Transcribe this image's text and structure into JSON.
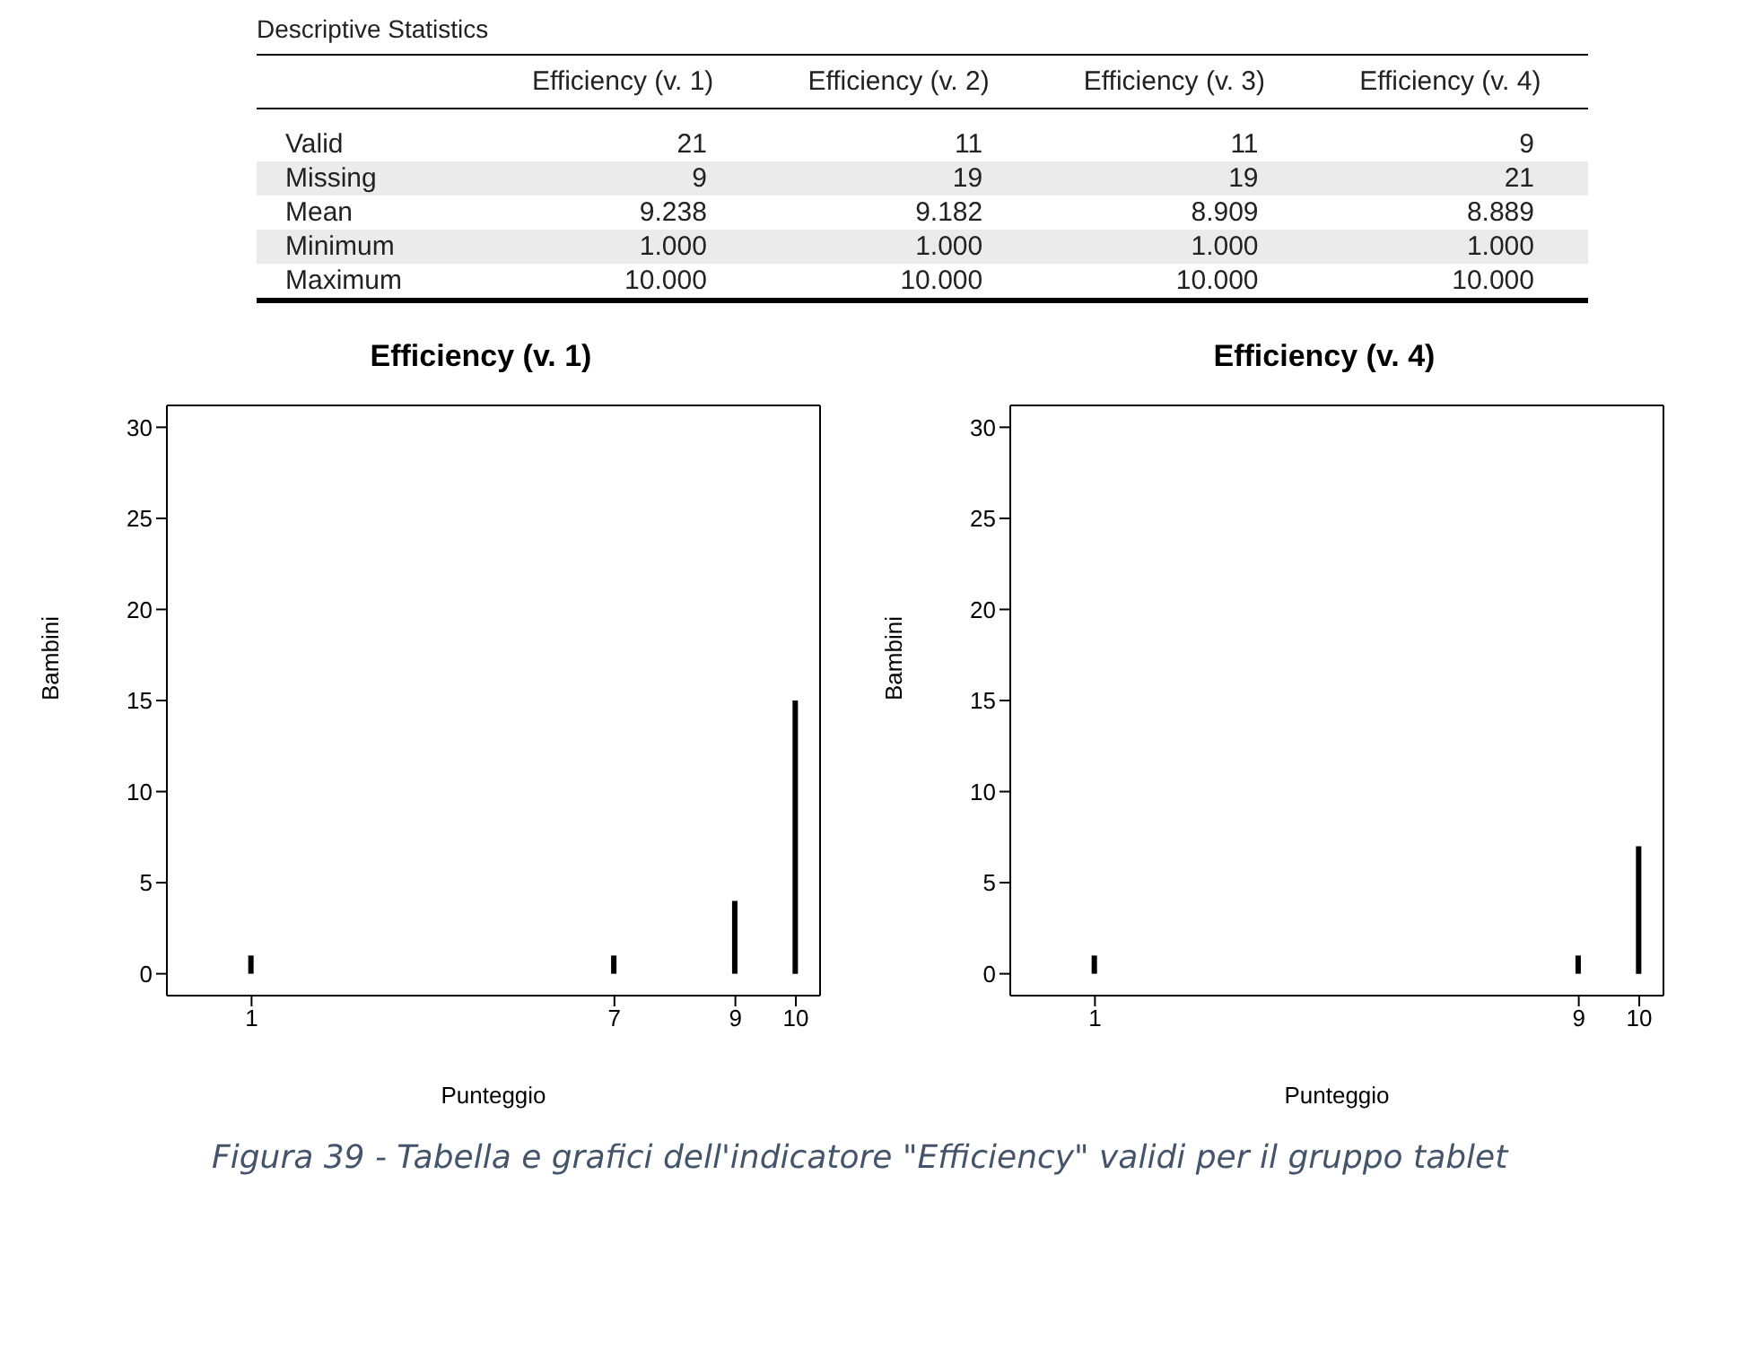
{
  "chart_data": [
    {
      "type": "other",
      "title": "Descriptive Statistics",
      "categories": [
        null,
        "Efficiency (v. 1)",
        "Efficiency (v. 2)",
        "Efficiency (v. 3)",
        "Efficiency (v. 4)"
      ],
      "y_categories": [
        "Valid",
        "Missing",
        "Mean",
        "Minimum",
        "Maximum"
      ],
      "cell_labels": [
        [
          "21",
          "11",
          "11",
          "9"
        ],
        [
          "9",
          "19",
          "19",
          "21"
        ],
        [
          "9.238",
          "9.182",
          "8.909",
          "8.889"
        ],
        [
          "1.000",
          "1.000",
          "1.000",
          "1.000"
        ],
        [
          "10.000",
          "10.000",
          "10.000",
          "10.000"
        ]
      ]
    },
    {
      "type": "bar",
      "title": "Efficiency (v. 1)",
      "xlabel": "Punteggio",
      "ylabel": "Bambini",
      "x": [
        1,
        7,
        9,
        10
      ],
      "values": [
        1,
        1,
        4,
        15
      ],
      "color": "#000000",
      "xlim": [
        -0.4,
        10.4
      ],
      "xticks": [
        1,
        7,
        9,
        10
      ],
      "ylim": [
        -1.2,
        31.2
      ],
      "yticks": [
        0,
        5,
        10,
        15,
        20,
        25,
        30
      ],
      "grid": false
    },
    {
      "type": "bar",
      "title": "Efficiency (v. 4)",
      "xlabel": "Punteggio",
      "ylabel": "Bambini",
      "x": [
        1,
        9,
        10
      ],
      "values": [
        1,
        1,
        7
      ],
      "color": "#000000",
      "xlim": [
        -0.4,
        10.4
      ],
      "xticks": [
        1,
        9,
        10
      ],
      "ylim": [
        -1.2,
        31.2
      ],
      "yticks": [
        0,
        5,
        10,
        15,
        20,
        25,
        30
      ],
      "grid": false,
      "annotations": [
        "Figura 39 - Tabella e grafici dell'indicatore \"Efficiency\" validi per il gruppo tablet"
      ]
    }
  ]
}
